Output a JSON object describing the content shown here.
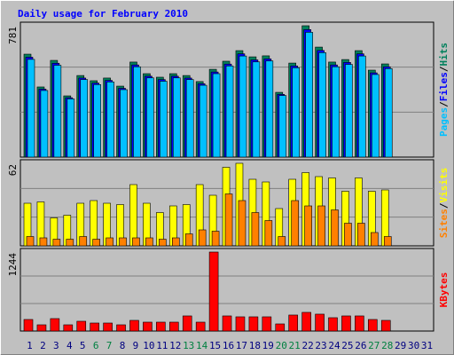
{
  "chart_data": [
    {
      "type": "bar",
      "title": "Daily usage for February 2010",
      "ylim": [
        0,
        781
      ],
      "yticks": [
        781
      ],
      "legend_separator": "/",
      "series": [
        {
          "name": "Hits",
          "color": "#00805c",
          "values": [
            612,
            417,
            575,
            364,
            485,
            454,
            470,
            422,
            565,
            496,
            475,
            496,
            485,
            449,
            522,
            570,
            633,
            596,
            602,
            385,
            559,
            781,
            654,
            565,
            580,
            633,
            517,
            554,
            null,
            null,
            null
          ]
        },
        {
          "name": "Files",
          "color": "#0000ff",
          "values": [
            594,
            404,
            558,
            353,
            470,
            440,
            456,
            409,
            548,
            481,
            461,
            481,
            470,
            436,
            506,
            553,
            614,
            578,
            584,
            373,
            542,
            758,
            634,
            548,
            563,
            614,
            501,
            537,
            null,
            null,
            null
          ]
        },
        {
          "name": "Pages",
          "color": "#00c0ff",
          "values": [
            581,
            396,
            546,
            346,
            461,
            431,
            447,
            401,
            537,
            471,
            451,
            471,
            461,
            427,
            496,
            542,
            601,
            566,
            572,
            366,
            531,
            742,
            621,
            537,
            551,
            601,
            491,
            526,
            null,
            null,
            null
          ]
        }
      ]
    },
    {
      "type": "bar",
      "ylim": [
        0,
        62
      ],
      "yticks": [
        62
      ],
      "legend_separator": "/",
      "series": [
        {
          "name": "Visits",
          "color": "#ffff00",
          "values": [
            32,
            33,
            21,
            23,
            32,
            34,
            32,
            31,
            46,
            32,
            25,
            30,
            31,
            46,
            38,
            59,
            62,
            50,
            48,
            28,
            50,
            55,
            52,
            51,
            41,
            51,
            41,
            42,
            null,
            null,
            null
          ]
        },
        {
          "name": "Sites",
          "color": "#ff8000",
          "values": [
            7,
            6,
            5,
            5,
            7,
            5,
            6,
            6,
            6,
            6,
            5,
            6,
            9,
            12,
            11,
            39,
            34,
            25,
            19,
            7,
            34,
            30,
            30,
            27,
            17,
            17,
            10,
            7,
            null,
            null,
            null
          ]
        }
      ]
    },
    {
      "type": "bar",
      "ylim": [
        0,
        1244
      ],
      "yticks": [
        1244
      ],
      "categories": [
        "1",
        "2",
        "3",
        "4",
        "5",
        "6",
        "7",
        "8",
        "9",
        "10",
        "11",
        "12",
        "13",
        "14",
        "15",
        "16",
        "17",
        "18",
        "19",
        "20",
        "21",
        "22",
        "23",
        "24",
        "25",
        "26",
        "27",
        "28",
        "29",
        "30",
        "31"
      ],
      "category_colors": [
        "#000080",
        "#000080",
        "#000080",
        "#000080",
        "#000080",
        "#008040",
        "#008040",
        "#000080",
        "#000080",
        "#000080",
        "#000080",
        "#000080",
        "#008040",
        "#008040",
        "#000080",
        "#000080",
        "#000080",
        "#000080",
        "#000080",
        "#008040",
        "#008040",
        "#000080",
        "#000080",
        "#000080",
        "#000080",
        "#000080",
        "#008040",
        "#008040",
        "#000080",
        "#000080",
        "#000080"
      ],
      "series": [
        {
          "name": "KBytes",
          "color": "#ff0000",
          "values": [
            182,
            98,
            196,
            98,
            154,
            126,
            126,
            98,
            168,
            140,
            140,
            140,
            238,
            140,
            1244,
            238,
            224,
            224,
            224,
            112,
            252,
            294,
            266,
            210,
            238,
            238,
            182,
            168,
            null,
            null,
            null
          ]
        }
      ]
    }
  ]
}
